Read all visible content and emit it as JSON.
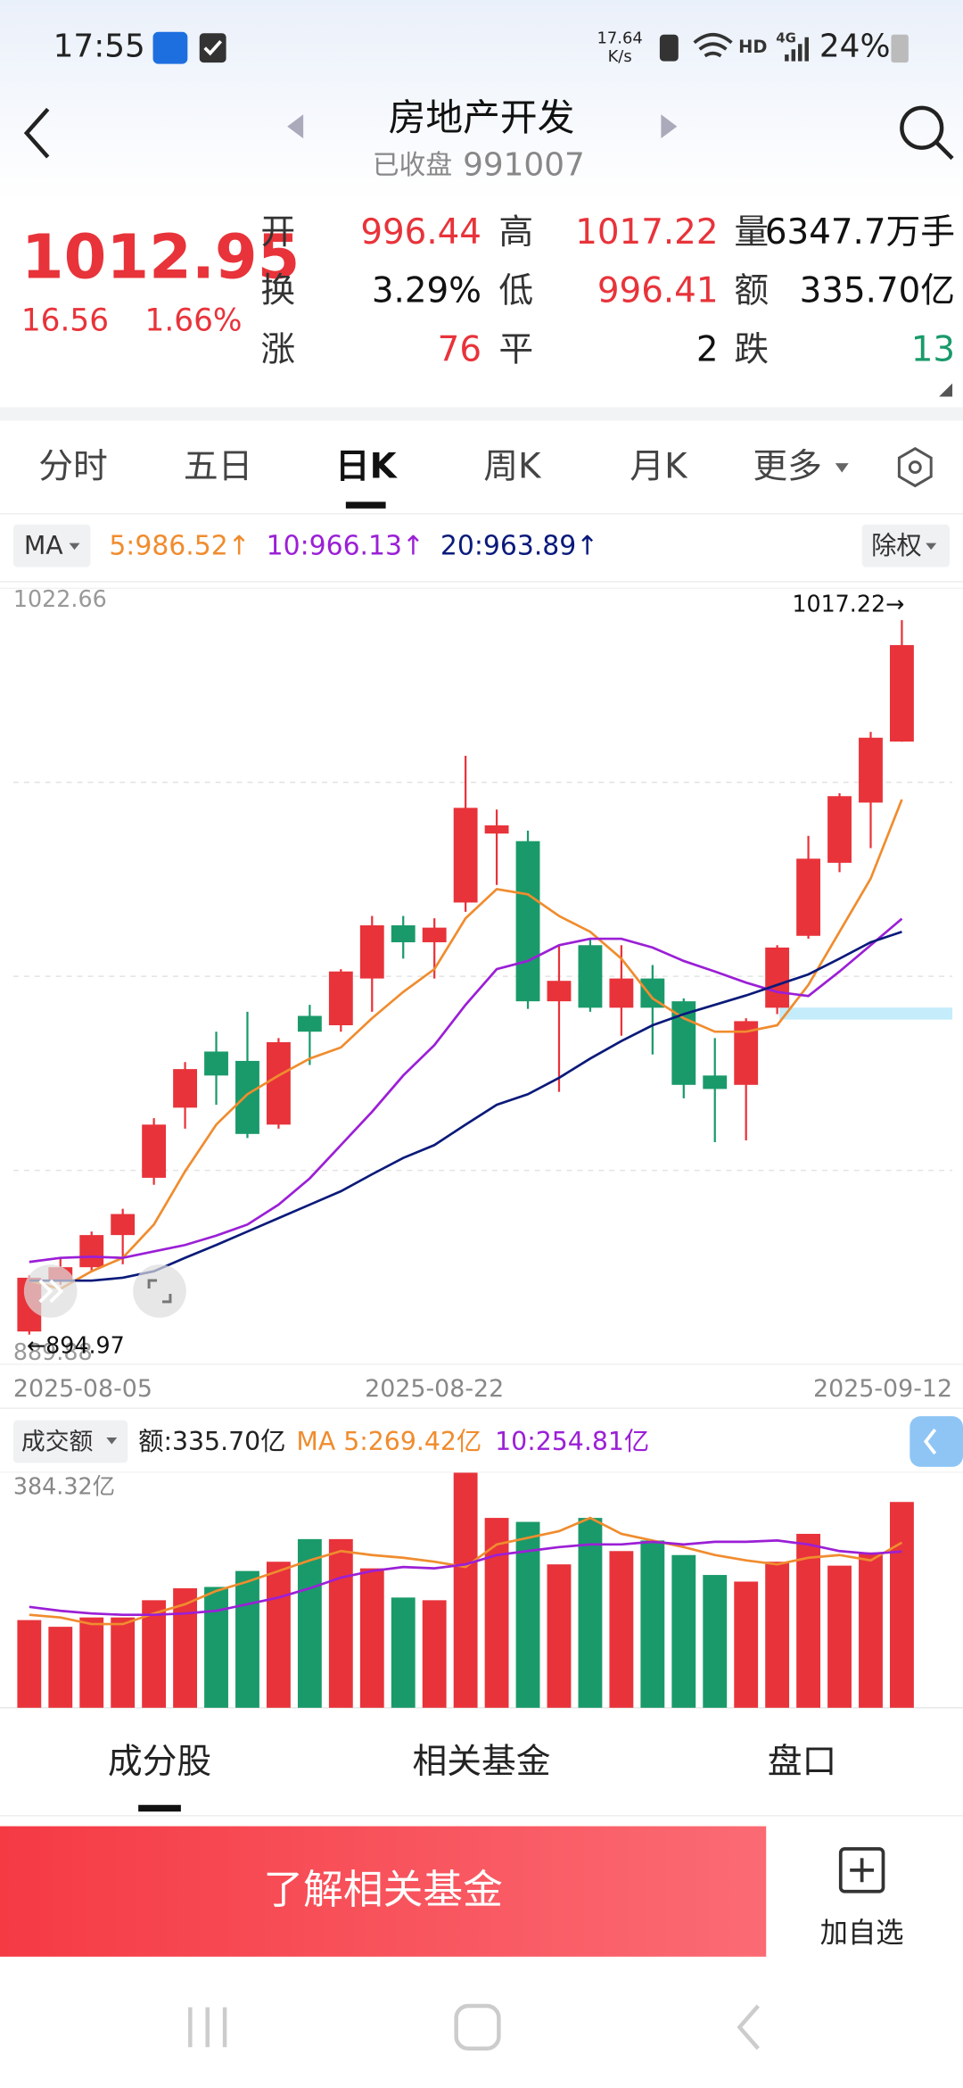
{
  "status_bar": {
    "time": "17:55",
    "speed": "17.64",
    "speed_unit": "K/s",
    "hd": "HD",
    "network": "4G",
    "battery": "24%"
  },
  "header": {
    "title": "房地产开发",
    "status": "已收盘",
    "code": "991007"
  },
  "quote": {
    "price": "1012.95",
    "change": "16.56",
    "change_pct": "1.66%",
    "stats": [
      [
        {
          "label": "开",
          "value": "996.44",
          "color": "#e8333a"
        },
        {
          "label": "高",
          "value": "1017.22",
          "color": "#e8333a"
        },
        {
          "label": "量",
          "value": "6347.7万手",
          "color": "#111111"
        }
      ],
      [
        {
          "label": "换",
          "value": "3.29%",
          "color": "#111111"
        },
        {
          "label": "低",
          "value": "996.41",
          "color": "#e8333a"
        },
        {
          "label": "额",
          "value": "335.70亿",
          "color": "#111111"
        }
      ],
      [
        {
          "label": "涨",
          "value": "76",
          "color": "#e8333a"
        },
        {
          "label": "平",
          "value": "2",
          "color": "#111111"
        },
        {
          "label": "跌",
          "value": "13",
          "color": "#1a9a6a"
        }
      ]
    ]
  },
  "tabs": {
    "items": [
      "分时",
      "五日",
      "日K",
      "周K",
      "月K",
      "更多"
    ],
    "active": 2
  },
  "ma_bar": {
    "selector": "MA",
    "adjust": "除权"
  },
  "chart_data": [
    {
      "type": "candlestick",
      "categories": [
        "2025-08-05",
        null,
        null,
        null,
        null,
        null,
        null,
        null,
        null,
        null,
        null,
        null,
        null,
        "2025-08-22",
        null,
        null,
        null,
        null,
        null,
        null,
        null,
        null,
        null,
        null,
        null,
        null,
        null,
        null,
        "2025-09-12"
      ],
      "open": [
        895.5,
        904.2,
        906.5,
        912.0,
        921.8,
        933.8,
        943.4,
        941.8,
        930.9,
        949.5,
        947.9,
        955.9,
        965.0,
        962.1,
        968.9,
        980.7,
        979.4,
        952.0,
        961.6,
        950.9,
        955.9,
        952.0,
        939.3,
        937.7,
        950.9,
        963.2,
        975.7,
        986.0,
        996.44
      ],
      "high": [
        905.1,
        908.1,
        912.6,
        916.5,
        932.0,
        941.6,
        946.8,
        950.2,
        945.7,
        951.4,
        957.5,
        966.6,
        966.6,
        966.2,
        994.0,
        984.8,
        981.2,
        961.6,
        962.7,
        961.6,
        958.2,
        952.5,
        945.7,
        949.1,
        961.6,
        980.3,
        987.6,
        998.1,
        1017.22
      ],
      "low": [
        894.97,
        903.5,
        905.8,
        907.0,
        920.6,
        930.2,
        934.3,
        928.6,
        930.2,
        941.1,
        946.8,
        950.2,
        959.3,
        955.9,
        967.3,
        971.9,
        950.7,
        936.5,
        950.2,
        946.1,
        942.9,
        935.4,
        927.9,
        928.2,
        949.8,
        962.7,
        974.1,
        978.2,
        996.41
      ],
      "close": [
        904.7,
        906.5,
        912.0,
        915.6,
        930.9,
        940.4,
        939.3,
        929.3,
        945.0,
        946.8,
        957.1,
        965.0,
        962.1,
        964.6,
        985.1,
        982.1,
        952.0,
        955.5,
        950.9,
        955.9,
        950.9,
        937.7,
        937.0,
        948.6,
        961.2,
        976.4,
        987.1,
        997.1,
        1012.95
      ],
      "up_color": "#e8333a",
      "down_color": "#1a9a6a",
      "ma_lines": [
        {
          "name": "5:986.52↑",
          "color": "#f08c2e",
          "values": [
            904.2,
            902.8,
            905.8,
            908.1,
            913.8,
            922.9,
            930.9,
            936.1,
            939.3,
            942.2,
            944.1,
            949.1,
            953.6,
            957.5,
            966.2,
            971.2,
            970.3,
            966.6,
            963.9,
            959.3,
            952.5,
            949.1,
            946.8,
            946.8,
            947.9,
            954.8,
            963.9,
            973.0,
            986.52
          ]
        },
        {
          "name": "10:966.13↑",
          "color": "#9b1fd6",
          "values": [
            907.4,
            908.1,
            908.3,
            908.1,
            909.2,
            910.3,
            911.9,
            913.8,
            917.2,
            921.7,
            927.4,
            933.1,
            939.3,
            944.5,
            951.4,
            957.5,
            958.9,
            961.6,
            962.7,
            962.7,
            961.2,
            958.9,
            957.1,
            955.2,
            953.6,
            952.9,
            957.1,
            961.6,
            966.13
          ]
        },
        {
          "name": "20:963.89↑",
          "color": "#0a1a7a",
          "values": [
            904.2,
            904.2,
            904.2,
            904.7,
            905.8,
            908.1,
            910.3,
            912.6,
            914.9,
            917.2,
            919.5,
            922.4,
            925.2,
            927.4,
            930.9,
            934.3,
            936.1,
            938.9,
            942.2,
            945.2,
            947.9,
            949.8,
            951.4,
            953.0,
            954.8,
            956.6,
            959.3,
            962.1,
            963.89
          ]
        }
      ],
      "ylim": [
        889.88,
        1022.66
      ],
      "yticks": [
        889.88,
        1022.66
      ],
      "annotations": {
        "high": "1017.22→",
        "low": "←894.97"
      }
    },
    {
      "type": "bar",
      "selector": "成交额",
      "summary": "额:335.70亿",
      "values": [
        143.0,
        132.1,
        147.3,
        147.3,
        175.4,
        194.9,
        197.1,
        223.1,
        238.2,
        275.1,
        275.1,
        227.4,
        179.8,
        175.4,
        383.4,
        309.7,
        303.2,
        233.9,
        309.7,
        255.6,
        272.9,
        249.1,
        216.6,
        205.8,
        238.2,
        283.7,
        231.8,
        253.4,
        335.7
      ],
      "colors": [
        "#e8333a",
        "#e8333a",
        "#e8333a",
        "#e8333a",
        "#e8333a",
        "#e8333a",
        "#1a9a6a",
        "#1a9a6a",
        "#e8333a",
        "#1a9a6a",
        "#e8333a",
        "#e8333a",
        "#1a9a6a",
        "#e8333a",
        "#e8333a",
        "#e8333a",
        "#1a9a6a",
        "#e8333a",
        "#1a9a6a",
        "#e8333a",
        "#1a9a6a",
        "#1a9a6a",
        "#1a9a6a",
        "#e8333a",
        "#e8333a",
        "#e8333a",
        "#e8333a",
        "#e8333a",
        "#e8333a"
      ],
      "series": [
        {
          "name": "MA 5:269.42亿",
          "color": "#f08c2e",
          "values": [
            151.6,
            147.3,
            136.5,
            136.5,
            153.8,
            168.9,
            190.6,
            205.8,
            223.1,
            240.4,
            255.6,
            249.1,
            244.7,
            238.2,
            229.6,
            266.4,
            277.2,
            288.1,
            309.7,
            283.7,
            272.9,
            262.1,
            249.1,
            240.4,
            233.9,
            244.7,
            249.1,
            240.4,
            269.42
          ]
        },
        {
          "name": "10:254.81亿",
          "color": "#9b1fd6",
          "values": [
            164.6,
            158.1,
            153.8,
            151.6,
            151.6,
            153.8,
            158.1,
            168.9,
            179.8,
            194.9,
            212.3,
            223.1,
            229.6,
            227.4,
            233.9,
            249.1,
            255.6,
            262.1,
            266.4,
            266.4,
            270.7,
            266.4,
            270.7,
            270.7,
            272.9,
            266.4,
            255.6,
            251.2,
            254.81
          ]
        }
      ],
      "ylim": [
        0,
        384.32
      ],
      "yticks": [
        {
          "value": 384.32,
          "label": "384.32亿"
        }
      ]
    }
  ],
  "bottom_tabs": {
    "items": [
      "成分股",
      "相关基金",
      "盘口"
    ],
    "active": 0
  },
  "actions": {
    "primary": "了解相关基金",
    "secondary": "加自选"
  }
}
